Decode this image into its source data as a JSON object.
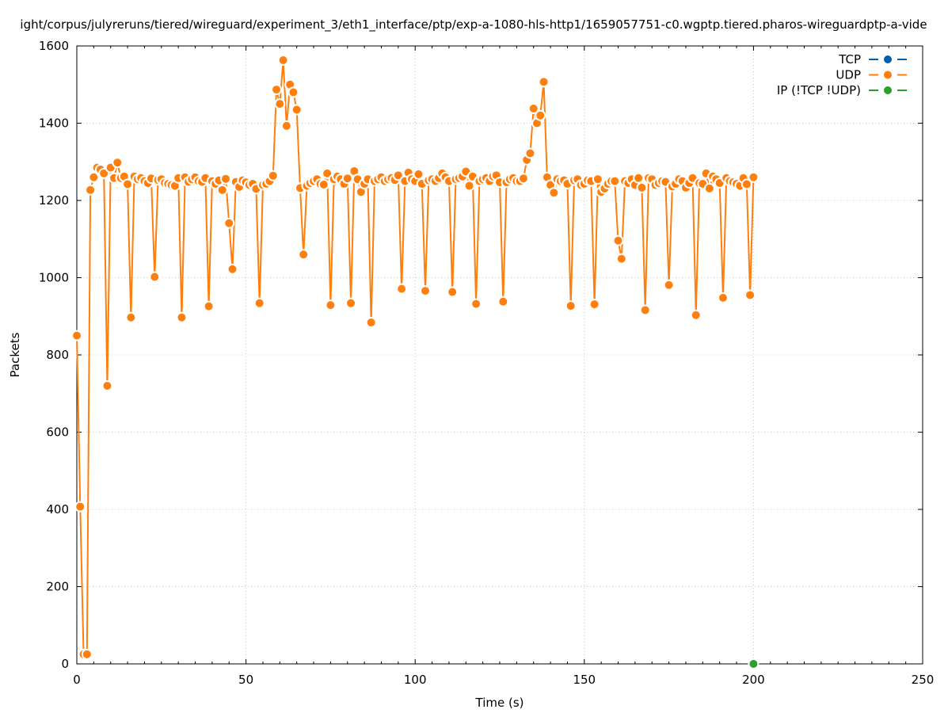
{
  "chart_data": {
    "type": "line",
    "title": "ight/corpus/julyreruns/tiered/wireguard/experiment_3/eth1_interface/ptp/exp-a-1080-hls-http1/1659057751-c0.wgptp.tiered.pharos-wireguardptp-a-vide",
    "xlabel": "Time (s)",
    "ylabel": "Packets",
    "xlim": [
      0,
      250
    ],
    "ylim": [
      0,
      1600
    ],
    "x_ticks": [
      "0",
      "50",
      "100",
      "150",
      "200",
      "250"
    ],
    "y_ticks": [
      "0",
      "200",
      "400",
      "600",
      "800",
      "1000",
      "1200",
      "1400",
      "1600"
    ],
    "grid": true,
    "legend_position": "top-right",
    "series": [
      {
        "name": "TCP",
        "color": "#0060ad",
        "points": []
      },
      {
        "name": "UDP",
        "color": "#ff7f0e",
        "points": [
          [
            0,
            850
          ],
          [
            1,
            407
          ],
          [
            2,
            25
          ],
          [
            3,
            25
          ],
          [
            4,
            1227
          ],
          [
            5,
            1260
          ],
          [
            6,
            1285
          ],
          [
            7,
            1280
          ],
          [
            8,
            1270
          ],
          [
            9,
            720
          ],
          [
            10,
            1285
          ],
          [
            11,
            1258
          ],
          [
            12,
            1298
          ],
          [
            13,
            1258
          ],
          [
            14,
            1262
          ],
          [
            15,
            1242
          ],
          [
            16,
            897
          ],
          [
            17,
            1262
          ],
          [
            18,
            1255
          ],
          [
            19,
            1258
          ],
          [
            20,
            1250
          ],
          [
            21,
            1245
          ],
          [
            22,
            1257
          ],
          [
            23,
            1002
          ],
          [
            24,
            1253
          ],
          [
            25,
            1255
          ],
          [
            26,
            1245
          ],
          [
            27,
            1243
          ],
          [
            28,
            1240
          ],
          [
            29,
            1238
          ],
          [
            30,
            1258
          ],
          [
            31,
            897
          ],
          [
            32,
            1260
          ],
          [
            33,
            1248
          ],
          [
            34,
            1255
          ],
          [
            35,
            1260
          ],
          [
            36,
            1250
          ],
          [
            37,
            1248
          ],
          [
            38,
            1258
          ],
          [
            39,
            926
          ],
          [
            40,
            1250
          ],
          [
            41,
            1243
          ],
          [
            42,
            1252
          ],
          [
            43,
            1227
          ],
          [
            44,
            1256
          ],
          [
            45,
            1141
          ],
          [
            46,
            1022
          ],
          [
            47,
            1248
          ],
          [
            48,
            1235
          ],
          [
            49,
            1252
          ],
          [
            50,
            1247
          ],
          [
            51,
            1240
          ],
          [
            52,
            1243
          ],
          [
            53,
            1230
          ],
          [
            54,
            934
          ],
          [
            55,
            1240
          ],
          [
            56,
            1243
          ],
          [
            57,
            1250
          ],
          [
            58,
            1264
          ],
          [
            59,
            1487
          ],
          [
            60,
            1450
          ],
          [
            61,
            1563
          ],
          [
            62,
            1393
          ],
          [
            63,
            1500
          ],
          [
            64,
            1480
          ],
          [
            65,
            1435
          ],
          [
            66,
            1232
          ],
          [
            67,
            1060
          ],
          [
            68,
            1238
          ],
          [
            69,
            1245
          ],
          [
            70,
            1250
          ],
          [
            71,
            1255
          ],
          [
            72,
            1243
          ],
          [
            73,
            1241
          ],
          [
            74,
            1270
          ],
          [
            75,
            929
          ],
          [
            76,
            1255
          ],
          [
            77,
            1262
          ],
          [
            78,
            1255
          ],
          [
            79,
            1243
          ],
          [
            80,
            1257
          ],
          [
            81,
            934
          ],
          [
            82,
            1276
          ],
          [
            83,
            1255
          ],
          [
            84,
            1222
          ],
          [
            85,
            1243
          ],
          [
            86,
            1255
          ],
          [
            87,
            884
          ],
          [
            88,
            1250
          ],
          [
            89,
            1255
          ],
          [
            90,
            1260
          ],
          [
            91,
            1250
          ],
          [
            92,
            1255
          ],
          [
            93,
            1258
          ],
          [
            94,
            1253
          ],
          [
            95,
            1265
          ],
          [
            96,
            971
          ],
          [
            97,
            1250
          ],
          [
            98,
            1272
          ],
          [
            99,
            1255
          ],
          [
            100,
            1250
          ],
          [
            101,
            1268
          ],
          [
            102,
            1243
          ],
          [
            103,
            966
          ],
          [
            104,
            1252
          ],
          [
            105,
            1255
          ],
          [
            106,
            1250
          ],
          [
            107,
            1258
          ],
          [
            108,
            1270
          ],
          [
            109,
            1260
          ],
          [
            110,
            1250
          ],
          [
            111,
            963
          ],
          [
            112,
            1255
          ],
          [
            113,
            1258
          ],
          [
            114,
            1262
          ],
          [
            115,
            1275
          ],
          [
            116,
            1238
          ],
          [
            117,
            1262
          ],
          [
            118,
            932
          ],
          [
            119,
            1250
          ],
          [
            120,
            1255
          ],
          [
            121,
            1258
          ],
          [
            122,
            1250
          ],
          [
            123,
            1262
          ],
          [
            124,
            1265
          ],
          [
            125,
            1247
          ],
          [
            126,
            938
          ],
          [
            127,
            1247
          ],
          [
            128,
            1255
          ],
          [
            129,
            1258
          ],
          [
            130,
            1250
          ],
          [
            131,
            1250
          ],
          [
            132,
            1257
          ],
          [
            133,
            1305
          ],
          [
            134,
            1322
          ],
          [
            135,
            1438
          ],
          [
            136,
            1400
          ],
          [
            137,
            1420
          ],
          [
            138,
            1507
          ],
          [
            139,
            1260
          ],
          [
            140,
            1240
          ],
          [
            141,
            1220
          ],
          [
            142,
            1255
          ],
          [
            143,
            1250
          ],
          [
            144,
            1252
          ],
          [
            145,
            1243
          ],
          [
            146,
            927
          ],
          [
            147,
            1252
          ],
          [
            148,
            1255
          ],
          [
            149,
            1240
          ],
          [
            150,
            1243
          ],
          [
            151,
            1252
          ],
          [
            152,
            1250
          ],
          [
            153,
            931
          ],
          [
            154,
            1255
          ],
          [
            155,
            1222
          ],
          [
            156,
            1231
          ],
          [
            157,
            1243
          ],
          [
            158,
            1250
          ],
          [
            159,
            1250
          ],
          [
            160,
            1096
          ],
          [
            161,
            1049
          ],
          [
            162,
            1250
          ],
          [
            163,
            1245
          ],
          [
            164,
            1255
          ],
          [
            165,
            1240
          ],
          [
            166,
            1258
          ],
          [
            167,
            1233
          ],
          [
            168,
            916
          ],
          [
            169,
            1258
          ],
          [
            170,
            1255
          ],
          [
            171,
            1240
          ],
          [
            172,
            1245
          ],
          [
            173,
            1250
          ],
          [
            174,
            1248
          ],
          [
            175,
            981
          ],
          [
            176,
            1236
          ],
          [
            177,
            1243
          ],
          [
            178,
            1255
          ],
          [
            179,
            1250
          ],
          [
            180,
            1233
          ],
          [
            181,
            1245
          ],
          [
            182,
            1258
          ],
          [
            183,
            903
          ],
          [
            184,
            1245
          ],
          [
            185,
            1243
          ],
          [
            186,
            1270
          ],
          [
            187,
            1231
          ],
          [
            188,
            1262
          ],
          [
            189,
            1255
          ],
          [
            190,
            1245
          ],
          [
            191,
            948
          ],
          [
            192,
            1258
          ],
          [
            193,
            1250
          ],
          [
            194,
            1247
          ],
          [
            195,
            1243
          ],
          [
            196,
            1238
          ],
          [
            197,
            1258
          ],
          [
            198,
            1242
          ],
          [
            199,
            955
          ],
          [
            200,
            1260
          ]
        ]
      },
      {
        "name": "IP (!TCP  !UDP)",
        "color": "#2ca02c",
        "points": [
          [
            200,
            0
          ]
        ]
      }
    ]
  }
}
